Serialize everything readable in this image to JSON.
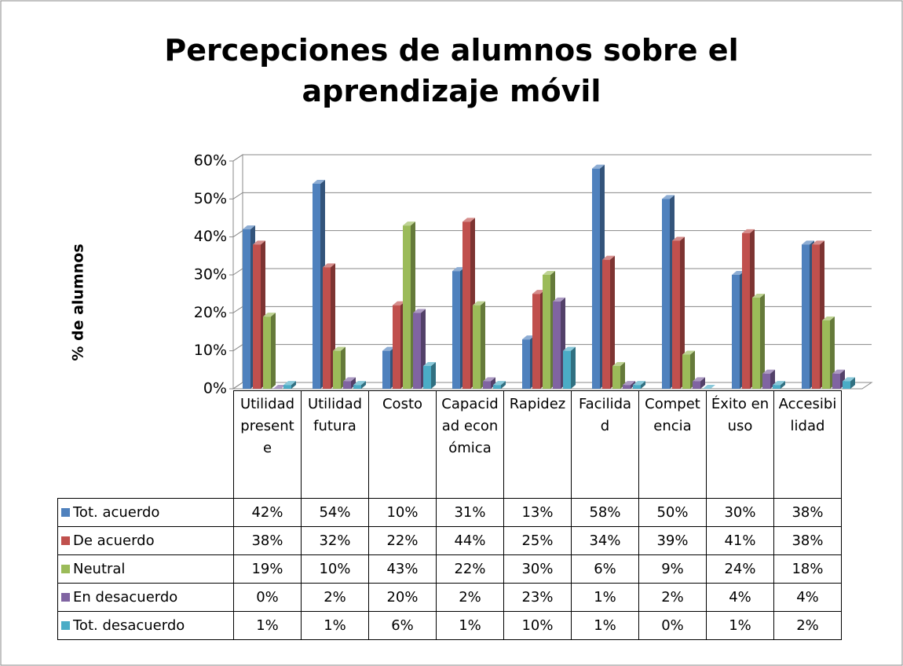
{
  "chart_data": {
    "type": "bar3d",
    "title": "Percepciones de alumnos sobre el aprendizaje móvil",
    "y_label": "% de alumnos",
    "categories": [
      "Utilidad presente",
      "Utilidad futura",
      "Costo",
      "Capacidad económica",
      "Rapidez",
      "Facilidad",
      "Competencia",
      "Éxito en uso",
      "Accesibilidad"
    ],
    "ylim": [
      0,
      60
    ],
    "yticks": [
      {
        "value": 0,
        "label": "0%"
      },
      {
        "value": 10,
        "label": "10%"
      },
      {
        "value": 20,
        "label": "20%"
      },
      {
        "value": 30,
        "label": "30%"
      },
      {
        "value": 40,
        "label": "40%"
      },
      {
        "value": 50,
        "label": "50%"
      },
      {
        "value": 60,
        "label": "60%"
      }
    ],
    "grid": true,
    "series": [
      {
        "name": "Tot.  acuerdo",
        "color": "#4f81bd",
        "values": [
          42,
          54,
          10,
          31,
          13,
          58,
          50,
          30,
          38
        ],
        "value_labels": [
          "42%",
          "54%",
          "10%",
          "31%",
          "13%",
          "58%",
          "50%",
          "30%",
          "38%"
        ]
      },
      {
        "name": "De acuerdo",
        "color": "#c0504d",
        "values": [
          38,
          32,
          22,
          44,
          25,
          34,
          39,
          41,
          38
        ],
        "value_labels": [
          "38%",
          "32%",
          "22%",
          "44%",
          "25%",
          "34%",
          "39%",
          "41%",
          "38%"
        ]
      },
      {
        "name": "Neutral",
        "color": "#9bbb59",
        "values": [
          19,
          10,
          43,
          22,
          30,
          6,
          9,
          24,
          18
        ],
        "value_labels": [
          "19%",
          "10%",
          "43%",
          "22%",
          "30%",
          "6%",
          "9%",
          "24%",
          "18%"
        ]
      },
      {
        "name": "En desacuerdo",
        "color": "#8064a2",
        "values": [
          0,
          2,
          20,
          2,
          23,
          1,
          2,
          4,
          4
        ],
        "value_labels": [
          "0%",
          "2%",
          "20%",
          "2%",
          "23%",
          "1%",
          "2%",
          "4%",
          "4%"
        ]
      },
      {
        "name": "Tot.  desacuerdo",
        "color": "#4bacc6",
        "values": [
          1,
          1,
          6,
          1,
          10,
          1,
          0,
          1,
          2
        ],
        "value_labels": [
          "1%",
          "1%",
          "6%",
          "1%",
          "10%",
          "1%",
          "0%",
          "1%",
          "2%"
        ]
      }
    ]
  }
}
